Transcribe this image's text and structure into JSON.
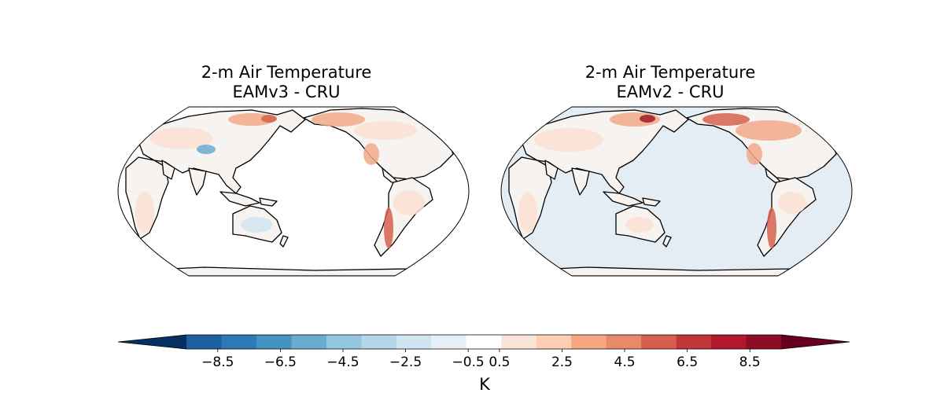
{
  "panels": [
    {
      "title_line1": "2-m Air Temperature",
      "title_line2": "EAMv3 - CRU",
      "ocean_fill": "#ffffff"
    },
    {
      "title_line1": "2-m Air Temperature",
      "title_line2": "EAMv2 - CRU",
      "ocean_fill": "#e4ecf4"
    }
  ],
  "colorbar": {
    "label": "K",
    "ticks": [
      "−8.5",
      "−6.5",
      "−4.5",
      "−2.5",
      "−0.5",
      "0.5",
      "2.5",
      "4.5",
      "6.5",
      "8.5"
    ],
    "colors": [
      "#053061",
      "#1d5fa2",
      "#2f79b5",
      "#4393c3",
      "#6aacd0",
      "#92c5de",
      "#b4d6e7",
      "#d1e5f0",
      "#e8f0f7",
      "#ffffff",
      "#fbe5d8",
      "#fdcdb4",
      "#f4a582",
      "#e78a6b",
      "#d6604d",
      "#c13639",
      "#b2182b",
      "#8c0d25",
      "#67001f"
    ]
  },
  "colors": {
    "coast": "#000000",
    "land_base": "#f7f3f1",
    "warm_light": "#fbe0d2",
    "warm_mid": "#f2a98a",
    "warm_strong": "#d6604d",
    "warm_max": "#9b1b2b",
    "cool_light": "#d3e4f1",
    "cool_mid": "#6aacd0"
  }
}
